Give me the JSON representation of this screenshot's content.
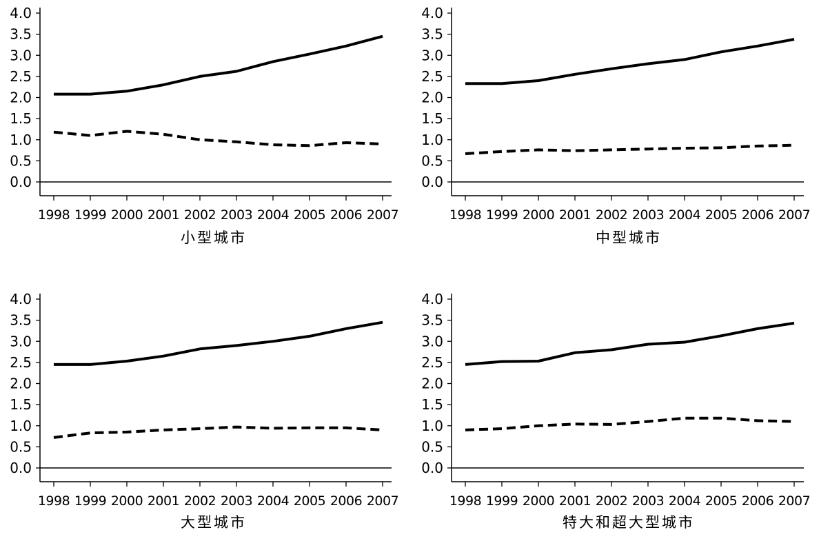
{
  "chart_data": [
    {
      "type": "line",
      "title": "小型城市",
      "x": [
        "1998",
        "1999",
        "2000",
        "2001",
        "2002",
        "2003",
        "2004",
        "2005",
        "2006",
        "2007"
      ],
      "ylim": [
        0,
        4.0
      ],
      "yticks": [
        "0.0",
        "0.5",
        "1.0",
        "1.5",
        "2.0",
        "2.5",
        "3.0",
        "3.5",
        "4.0"
      ],
      "series": [
        {
          "style": "solid",
          "values": [
            2.08,
            2.08,
            2.15,
            2.3,
            2.5,
            2.62,
            2.85,
            3.03,
            3.22,
            3.45
          ]
        },
        {
          "style": "dashed",
          "values": [
            1.18,
            1.1,
            1.2,
            1.13,
            1.0,
            0.95,
            0.88,
            0.86,
            0.93,
            0.9
          ]
        }
      ]
    },
    {
      "type": "line",
      "title": "中型城市",
      "x": [
        "1998",
        "1999",
        "2000",
        "2001",
        "2002",
        "2003",
        "2004",
        "2005",
        "2006",
        "2007"
      ],
      "ylim": [
        0,
        4.0
      ],
      "yticks": [
        "0.0",
        "0.5",
        "1.0",
        "1.5",
        "2.0",
        "2.5",
        "3.0",
        "3.5",
        "4.0"
      ],
      "series": [
        {
          "style": "solid",
          "values": [
            2.33,
            2.33,
            2.4,
            2.55,
            2.68,
            2.8,
            2.9,
            3.08,
            3.22,
            3.38
          ]
        },
        {
          "style": "dashed",
          "values": [
            0.67,
            0.72,
            0.76,
            0.74,
            0.76,
            0.78,
            0.8,
            0.81,
            0.85,
            0.87
          ]
        }
      ]
    },
    {
      "type": "line",
      "title": "大型城市",
      "x": [
        "1998",
        "1999",
        "2000",
        "2001",
        "2002",
        "2003",
        "2004",
        "2005",
        "2006",
        "2007"
      ],
      "ylim": [
        0,
        4.0
      ],
      "yticks": [
        "0.0",
        "0.5",
        "1.0",
        "1.5",
        "2.0",
        "2.5",
        "3.0",
        "3.5",
        "4.0"
      ],
      "series": [
        {
          "style": "solid",
          "values": [
            2.45,
            2.45,
            2.53,
            2.65,
            2.82,
            2.9,
            3.0,
            3.12,
            3.3,
            3.45
          ]
        },
        {
          "style": "dashed",
          "values": [
            0.72,
            0.83,
            0.85,
            0.9,
            0.93,
            0.97,
            0.94,
            0.95,
            0.95,
            0.9
          ]
        }
      ]
    },
    {
      "type": "line",
      "title": "特大和超大型城市",
      "x": [
        "1998",
        "1999",
        "2000",
        "2001",
        "2002",
        "2003",
        "2004",
        "2005",
        "2006",
        "2007"
      ],
      "ylim": [
        0,
        4.0
      ],
      "yticks": [
        "0.0",
        "0.5",
        "1.0",
        "1.5",
        "2.0",
        "2.5",
        "3.0",
        "3.5",
        "4.0"
      ],
      "series": [
        {
          "style": "solid",
          "values": [
            2.45,
            2.52,
            2.53,
            2.73,
            2.8,
            2.93,
            2.98,
            3.13,
            3.3,
            3.43
          ]
        },
        {
          "style": "dashed",
          "values": [
            0.9,
            0.93,
            1.0,
            1.04,
            1.03,
            1.1,
            1.18,
            1.18,
            1.12,
            1.1
          ]
        }
      ]
    }
  ]
}
